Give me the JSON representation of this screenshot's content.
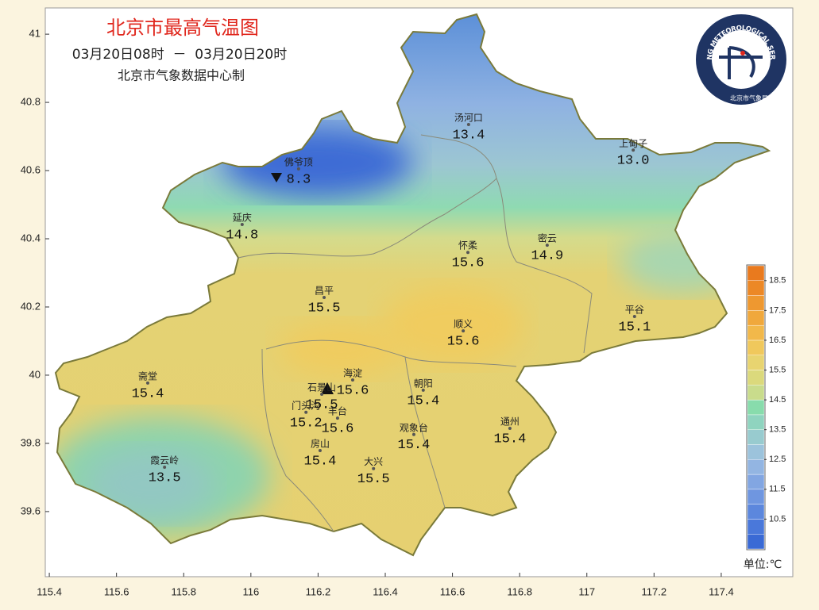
{
  "header": {
    "title": "北京市最高气温图",
    "subtitle": "03月20日08时  －  03月20日20时",
    "source": "北京市气象数据中心制"
  },
  "logo": {
    "text_en": "BEIJING METEOROLOGICAL SERVICE",
    "text_cn": "北京市气象局"
  },
  "map": {
    "xlim": [
      115.388,
      117.613
    ],
    "ylim": [
      39.409,
      41.077
    ],
    "xticks": [
      115.4,
      115.6,
      115.8,
      116,
      116.2,
      116.4,
      116.6,
      116.8,
      117,
      117.2,
      117.4
    ],
    "yticks": [
      39.6,
      39.8,
      40,
      40.2,
      40.4,
      40.6,
      40.8,
      41
    ],
    "stations": [
      {
        "name": "汤河口",
        "lon": 116.648,
        "lat": 40.735,
        "value": 13.4
      },
      {
        "name": "上甸子",
        "lon": 117.138,
        "lat": 40.66,
        "value": 13,
        "value_label": "13.0"
      },
      {
        "name": "佛爷顶",
        "lon": 116.142,
        "lat": 40.605,
        "value": 8.3
      },
      {
        "name": "延庆",
        "lon": 115.974,
        "lat": 40.442,
        "value": 14.8
      },
      {
        "name": "怀柔",
        "lon": 116.646,
        "lat": 40.36,
        "value": 15.6
      },
      {
        "name": "密云",
        "lon": 116.882,
        "lat": 40.381,
        "value": 14.9
      },
      {
        "name": "昌平",
        "lon": 116.218,
        "lat": 40.228,
        "value": 15.5
      },
      {
        "name": "平谷",
        "lon": 117.142,
        "lat": 40.172,
        "value": 15.1
      },
      {
        "name": "顺义",
        "lon": 116.632,
        "lat": 40.13,
        "value": 15.6
      },
      {
        "name": "海淀",
        "lon": 116.303,
        "lat": 39.986,
        "value": 15.6
      },
      {
        "name": "石景山",
        "lon": 116.211,
        "lat": 39.944,
        "value": 15.5
      },
      {
        "name": "朝阳",
        "lon": 116.513,
        "lat": 39.956,
        "value": 15.4
      },
      {
        "name": "斋堂",
        "lon": 115.693,
        "lat": 39.977,
        "value": 15.4
      },
      {
        "name": "门头沟",
        "lon": 116.164,
        "lat": 39.891,
        "value": 15.2
      },
      {
        "name": "丰台",
        "lon": 116.258,
        "lat": 39.874,
        "value": 15.6
      },
      {
        "name": "观象台",
        "lon": 116.485,
        "lat": 39.826,
        "value": 15.4
      },
      {
        "name": "通州",
        "lon": 116.771,
        "lat": 39.844,
        "value": 15.4
      },
      {
        "name": "房山",
        "lon": 116.206,
        "lat": 39.779,
        "value": 15.4
      },
      {
        "name": "大兴",
        "lon": 116.365,
        "lat": 39.726,
        "value": 15.5
      },
      {
        "name": "霞云岭",
        "lon": 115.743,
        "lat": 39.73,
        "value": 13.5
      }
    ]
  },
  "legend": {
    "lim": [
      9.5,
      19
    ],
    "ticks": [
      10.5,
      11.5,
      12.5,
      13.5,
      14.5,
      15.5,
      16.5,
      17.5,
      18.5
    ],
    "colors": [
      "#3a6ad5",
      "#4a78da",
      "#5c87dd",
      "#6f96e0",
      "#82a6e2",
      "#93b5e2",
      "#9cc3dc",
      "#98cbcf",
      "#8fd4bf",
      "#88dcac",
      "#c9dc8c",
      "#dbd97c",
      "#e8d470",
      "#f0c85c",
      "#f2b84a",
      "#f0a83c",
      "#ee9830",
      "#ec8826",
      "#e97a1e"
    ],
    "unit": "单位:℃"
  }
}
